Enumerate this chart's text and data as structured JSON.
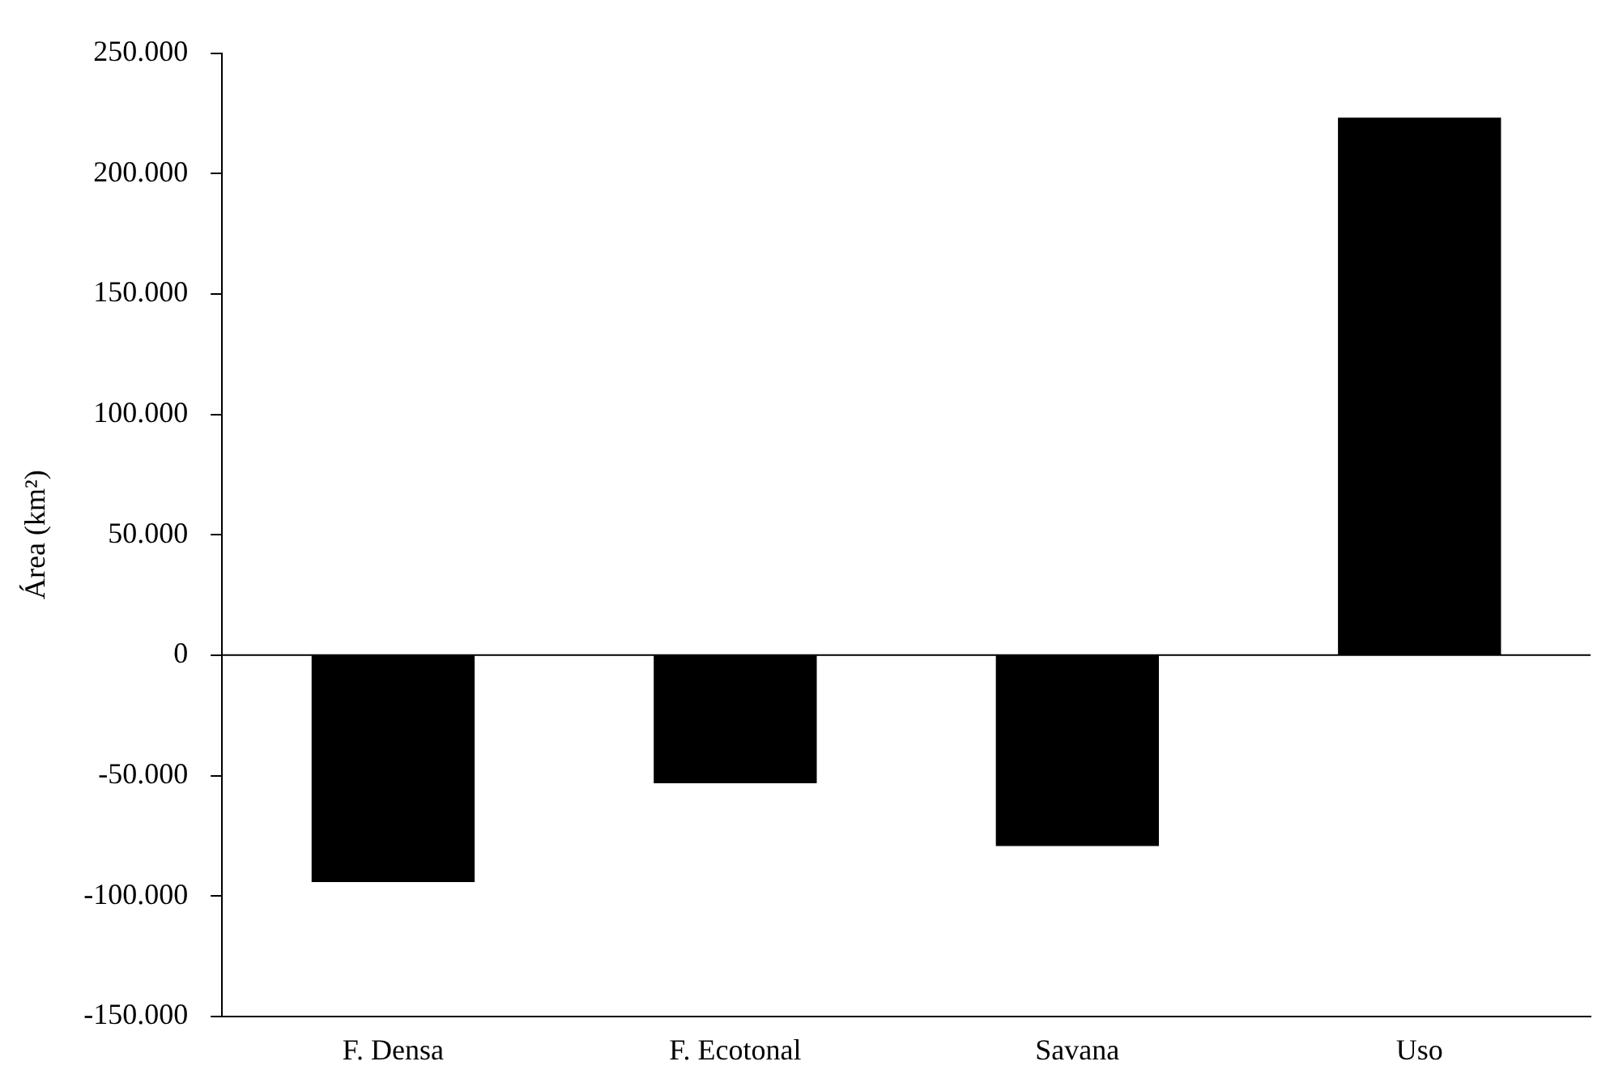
{
  "chart_data": {
    "type": "bar",
    "ylabel": "Área (km²)",
    "categories": [
      "F. Densa",
      "F. Ecotonal",
      "Savana",
      "Uso"
    ],
    "values": [
      -94000,
      -53000,
      -79000,
      223000
    ],
    "color": "#000000",
    "ylim": [
      -150000,
      250000
    ],
    "yticks": [
      {
        "value": -150000,
        "label": "-150.000"
      },
      {
        "value": -100000,
        "label": "-100.000"
      },
      {
        "value": -50000,
        "label": "-50.000"
      },
      0,
      {
        "value": 50000,
        "label": "50.000"
      },
      {
        "value": 100000,
        "label": "100.000"
      },
      {
        "value": 150000,
        "label": "150.000"
      },
      {
        "value": 200000,
        "label": "200.000"
      },
      {
        "value": 250000,
        "label": "250.000"
      }
    ],
    "ref_lines": [
      {
        "axis": "y",
        "value": 0,
        "color": "#000000"
      }
    ],
    "grid": false,
    "legend": false
  }
}
